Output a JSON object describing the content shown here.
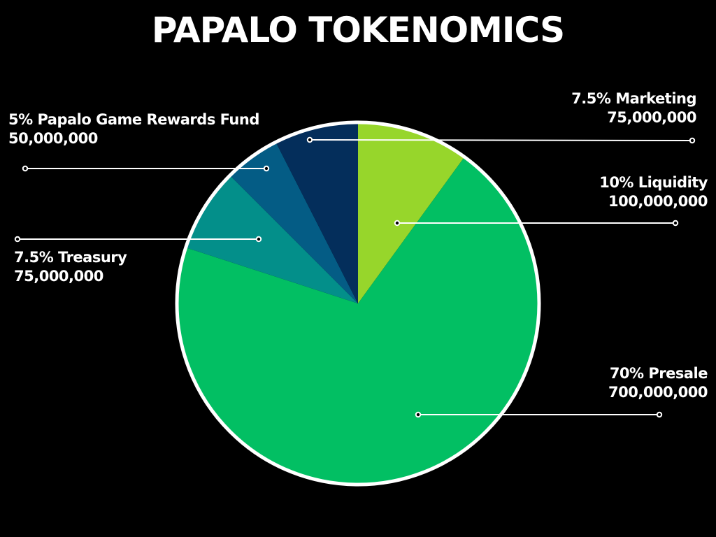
{
  "chart_data": {
    "type": "pie",
    "title": "PAPALO TOKENOMICS",
    "slices": [
      {
        "label": "Liquidity",
        "percent": 10,
        "amount": "100,000,000",
        "pct_text": "10%",
        "color": "#97d62b"
      },
      {
        "label": "Presale",
        "percent": 70,
        "amount": "700,000,000",
        "pct_text": "70%",
        "color": "#02bf63"
      },
      {
        "label": "Treasury",
        "percent": 7.5,
        "amount": "75,000,000",
        "pct_text": "7.5%",
        "color": "#038f8a"
      },
      {
        "label": "Papalo Game Rewards Fund",
        "percent": 5,
        "amount": "50,000,000",
        "pct_text": "5%",
        "color": "#045c85"
      },
      {
        "label": "Marketing",
        "percent": 7.5,
        "amount": "75,000,000",
        "pct_text": "7.5%",
        "color": "#042e5b"
      }
    ],
    "start_angle": "12 o'clock",
    "direction": "clockwise",
    "legend": "callout labels"
  },
  "labels": {
    "marketing": {
      "line1": "7.5% Marketing",
      "line2": "75,000,000"
    },
    "liquidity": {
      "line1": "10% Liquidity",
      "line2": "100,000,000"
    },
    "presale": {
      "line1": "70%  Presale",
      "line2": "700,000,000"
    },
    "treasury": {
      "line1": "7.5% Treasury",
      "line2": "75,000,000"
    },
    "rewards": {
      "line1": "5% Papalo Game Rewards Fund",
      "line2": "50,000,000"
    }
  }
}
